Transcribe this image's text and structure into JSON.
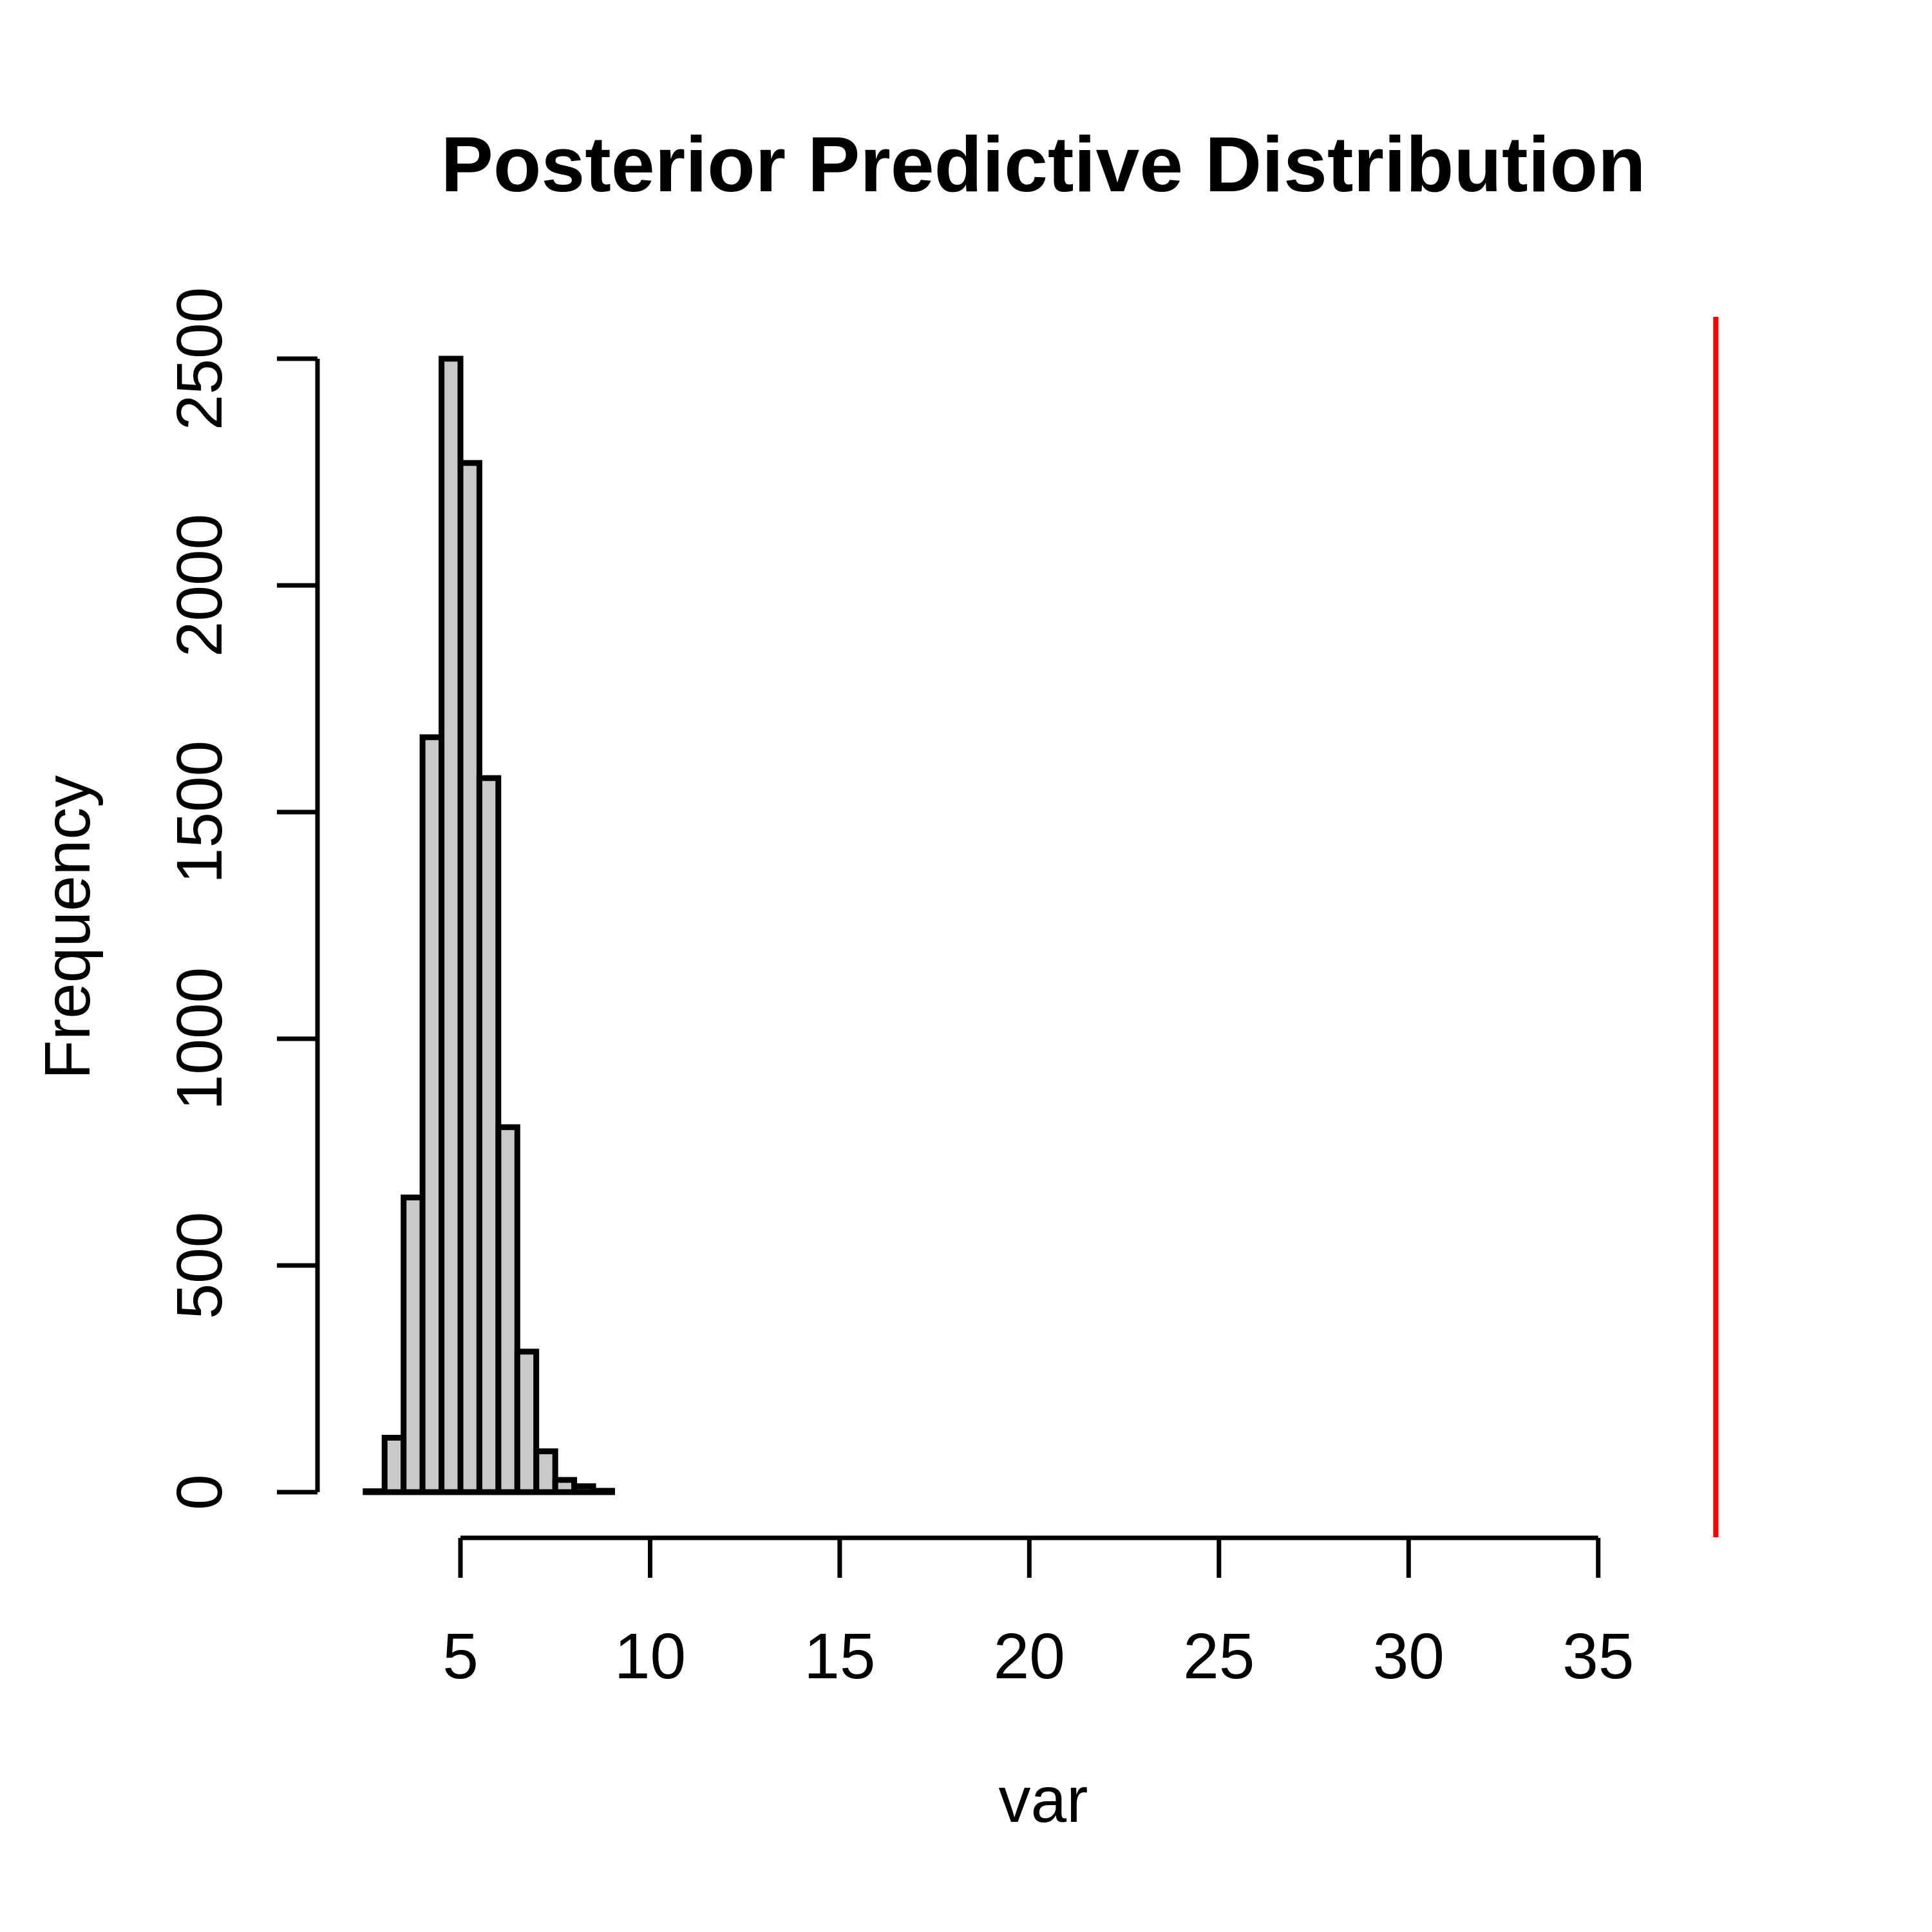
{
  "page": {
    "background": "#ffffff"
  },
  "chart_data": {
    "type": "histogram",
    "title": "Posterior Predictive Distribution",
    "xlabel": "var",
    "ylabel": "Frequency",
    "x_ticks": [
      5,
      10,
      15,
      20,
      25,
      30,
      35
    ],
    "y_ticks": [
      0,
      500,
      1000,
      1500,
      2000,
      2500
    ],
    "ylim": [
      0,
      2500
    ],
    "grid": false,
    "legend": false,
    "bins": {
      "start": 2.5,
      "width": 0.5,
      "edges": [
        2.5,
        3.0,
        3.5,
        4.0,
        4.5,
        5.0,
        5.5,
        6.0,
        6.5,
        7.0,
        7.5,
        8.0,
        8.5,
        9.0
      ],
      "frequencies": [
        2,
        120,
        650,
        1665,
        2500,
        2270,
        1575,
        805,
        310,
        90,
        27,
        13,
        3
      ]
    },
    "observed_line": {
      "value": 38.1,
      "orientation": "vertical",
      "color": "#ff0000"
    },
    "bar_fill_color": "#c9c9c9",
    "bar_border_color": "#000000",
    "axis_color": "#000000"
  }
}
